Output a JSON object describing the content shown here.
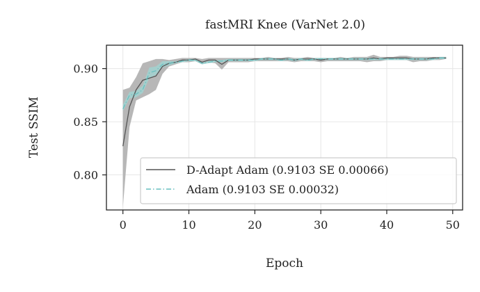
{
  "chart_data": {
    "type": "line",
    "title": "fastMRI Knee (VarNet 2.0)",
    "xlabel": "Epoch",
    "ylabel": "Test SSIM",
    "xlim": [
      -2.5,
      51.5
    ],
    "ylim": [
      0.767,
      0.922
    ],
    "xticks": [
      0,
      10,
      20,
      30,
      40,
      50
    ],
    "yticks": [
      0.8,
      0.85,
      0.9
    ],
    "xtick_labels": [
      "0",
      "10",
      "20",
      "30",
      "40",
      "50"
    ],
    "ytick_labels": [
      "0.80",
      "0.85",
      "0.90"
    ],
    "grid": true,
    "legend_position": "lower-right",
    "x": [
      0,
      1,
      2,
      3,
      4,
      5,
      6,
      7,
      8,
      9,
      10,
      11,
      12,
      13,
      14,
      15,
      16,
      17,
      18,
      19,
      20,
      21,
      22,
      23,
      24,
      25,
      26,
      27,
      28,
      29,
      30,
      31,
      32,
      33,
      34,
      35,
      36,
      37,
      38,
      39,
      40,
      41,
      42,
      43,
      44,
      45,
      46,
      47,
      48,
      49
    ],
    "series": [
      {
        "name": "D-Adapt Adam (0.9103 SE 0.00066)",
        "color": "#555555",
        "band_color": "#b3b3b3",
        "linestyle": "solid",
        "values": [
          0.827,
          0.864,
          0.88,
          0.889,
          0.891,
          0.893,
          0.902,
          0.905,
          0.906,
          0.908,
          0.908,
          0.909,
          0.906,
          0.908,
          0.908,
          0.904,
          0.908,
          0.908,
          0.908,
          0.908,
          0.909,
          0.909,
          0.909,
          0.909,
          0.909,
          0.909,
          0.908,
          0.909,
          0.909,
          0.909,
          0.908,
          0.909,
          0.909,
          0.909,
          0.909,
          0.909,
          0.909,
          0.909,
          0.91,
          0.909,
          0.91,
          0.91,
          0.91,
          0.91,
          0.909,
          0.909,
          0.909,
          0.91,
          0.91,
          0.91
        ],
        "lower": [
          0.77,
          0.845,
          0.87,
          0.873,
          0.876,
          0.88,
          0.895,
          0.902,
          0.904,
          0.906,
          0.906,
          0.907,
          0.904,
          0.906,
          0.905,
          0.899,
          0.906,
          0.906,
          0.906,
          0.906,
          0.907,
          0.907,
          0.907,
          0.907,
          0.907,
          0.907,
          0.906,
          0.907,
          0.907,
          0.907,
          0.906,
          0.907,
          0.907,
          0.907,
          0.907,
          0.907,
          0.907,
          0.906,
          0.907,
          0.907,
          0.908,
          0.908,
          0.908,
          0.908,
          0.906,
          0.907,
          0.907,
          0.908,
          0.908,
          0.909
        ],
        "upper": [
          0.88,
          0.882,
          0.892,
          0.905,
          0.907,
          0.909,
          0.909,
          0.908,
          0.909,
          0.91,
          0.91,
          0.91,
          0.909,
          0.91,
          0.91,
          0.91,
          0.91,
          0.91,
          0.91,
          0.91,
          0.91,
          0.91,
          0.911,
          0.91,
          0.91,
          0.911,
          0.91,
          0.91,
          0.911,
          0.91,
          0.91,
          0.91,
          0.91,
          0.911,
          0.91,
          0.911,
          0.911,
          0.911,
          0.913,
          0.911,
          0.911,
          0.911,
          0.912,
          0.912,
          0.911,
          0.911,
          0.911,
          0.911,
          0.911,
          0.911
        ]
      },
      {
        "name": "Adam (0.9103 SE 0.00032)",
        "color": "#66bfbf",
        "band_color": "#9fd6d3",
        "linestyle": "dashdot",
        "values": [
          0.862,
          0.875,
          0.876,
          0.88,
          0.896,
          0.898,
          0.904,
          0.905,
          0.906,
          0.907,
          0.908,
          0.908,
          0.905,
          0.906,
          0.907,
          0.907,
          0.908,
          0.908,
          0.908,
          0.908,
          0.908,
          0.909,
          0.909,
          0.909,
          0.908,
          0.909,
          0.908,
          0.909,
          0.908,
          0.909,
          0.909,
          0.909,
          0.909,
          0.909,
          0.909,
          0.909,
          0.909,
          0.909,
          0.909,
          0.909,
          0.909,
          0.909,
          0.909,
          0.909,
          0.909,
          0.909,
          0.909,
          0.909,
          0.91,
          0.91
        ],
        "lower": [
          0.86,
          0.872,
          0.873,
          0.877,
          0.891,
          0.894,
          0.901,
          0.903,
          0.905,
          0.906,
          0.907,
          0.907,
          0.904,
          0.905,
          0.906,
          0.906,
          0.907,
          0.907,
          0.907,
          0.907,
          0.907,
          0.908,
          0.908,
          0.908,
          0.907,
          0.908,
          0.907,
          0.908,
          0.907,
          0.908,
          0.908,
          0.908,
          0.908,
          0.908,
          0.908,
          0.908,
          0.908,
          0.908,
          0.908,
          0.908,
          0.908,
          0.908,
          0.908,
          0.908,
          0.908,
          0.908,
          0.908,
          0.908,
          0.909,
          0.909
        ],
        "upper": [
          0.866,
          0.878,
          0.879,
          0.884,
          0.901,
          0.902,
          0.907,
          0.907,
          0.907,
          0.908,
          0.909,
          0.909,
          0.906,
          0.907,
          0.908,
          0.908,
          0.909,
          0.909,
          0.909,
          0.909,
          0.909,
          0.91,
          0.91,
          0.91,
          0.909,
          0.91,
          0.909,
          0.91,
          0.909,
          0.91,
          0.91,
          0.91,
          0.91,
          0.91,
          0.91,
          0.91,
          0.91,
          0.91,
          0.91,
          0.91,
          0.91,
          0.91,
          0.91,
          0.91,
          0.91,
          0.91,
          0.91,
          0.91,
          0.911,
          0.911
        ]
      }
    ]
  }
}
